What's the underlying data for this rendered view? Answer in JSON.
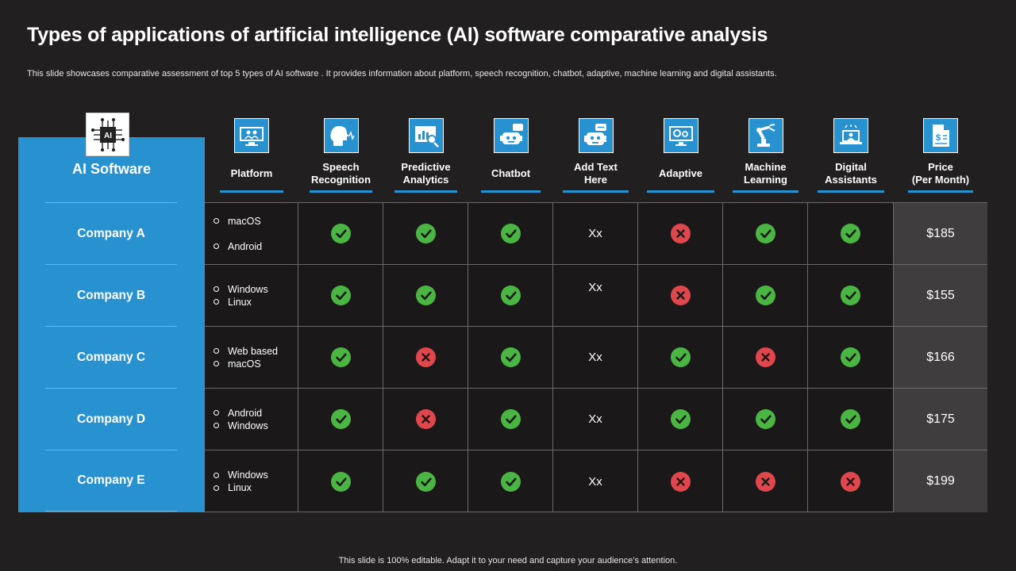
{
  "slide": {
    "title": "Types of applications of artificial intelligence (AI) software comparative analysis",
    "subtitle": "This slide showcases comparative assessment of top 5 types of AI  software . It provides information about platform, speech recognition, chatbot, adaptive, machine learning and digital assistants.",
    "footer": "This slide is 100% editable. Adapt it to your need and capture your audience’s attention.",
    "badge_text": "AI"
  },
  "colors": {
    "accent": "#2892d0",
    "check": "#4bb543",
    "cross": "#e0474c",
    "background": "#221f20"
  },
  "table": {
    "row_header_title": "AI Software",
    "columns": [
      {
        "label": "Platform",
        "icon": "monitor-people-icon"
      },
      {
        "label": "Speech\nRecognition",
        "icon": "head-sound-wave-icon"
      },
      {
        "label": "Predictive\nAnalytics",
        "icon": "chart-magnifier-icon"
      },
      {
        "label": "Chatbot",
        "icon": "robot-chat-icon"
      },
      {
        "label": "Add Text\nHere",
        "icon": "robot-message-icon"
      },
      {
        "label": "Adaptive",
        "icon": "screen-gears-icon"
      },
      {
        "label": "Machine\nLearning",
        "icon": "robotic-arm-icon"
      },
      {
        "label": "Digital\nAssistants",
        "icon": "assistant-laptop-icon"
      },
      {
        "label": "Price\n(Per Month)",
        "icon": "price-document-icon"
      }
    ],
    "rows": [
      {
        "company": "Company A",
        "platforms": [
          "macOS",
          "Android"
        ],
        "speech": "check",
        "predictive": "check",
        "chatbot": "check",
        "text": "Xx",
        "adaptive": "cross",
        "machine_learning": "check",
        "digital_assistants": "check",
        "price": "$185"
      },
      {
        "company": "Company B",
        "platforms": [
          "Windows",
          "Linux"
        ],
        "speech": "check",
        "predictive": "check",
        "chatbot": "check",
        "text": "Xx",
        "adaptive": "cross",
        "machine_learning": "check",
        "digital_assistants": "check",
        "price": "$155"
      },
      {
        "company": "Company C",
        "platforms": [
          "Web based",
          "macOS"
        ],
        "speech": "check",
        "predictive": "cross",
        "chatbot": "check",
        "text": "Xx",
        "adaptive": "check",
        "machine_learning": "cross",
        "digital_assistants": "check",
        "price": "$166"
      },
      {
        "company": "Company D",
        "platforms": [
          "Android",
          "Windows"
        ],
        "speech": "check",
        "predictive": "cross",
        "chatbot": "check",
        "text": "Xx",
        "adaptive": "check",
        "machine_learning": "check",
        "digital_assistants": "check",
        "price": "$175"
      },
      {
        "company": "Company E",
        "platforms": [
          "Windows",
          "Linux"
        ],
        "speech": "check",
        "predictive": "check",
        "chatbot": "check",
        "text": "Xx",
        "adaptive": "cross",
        "machine_learning": "cross",
        "digital_assistants": "cross",
        "price": "$199"
      }
    ]
  }
}
